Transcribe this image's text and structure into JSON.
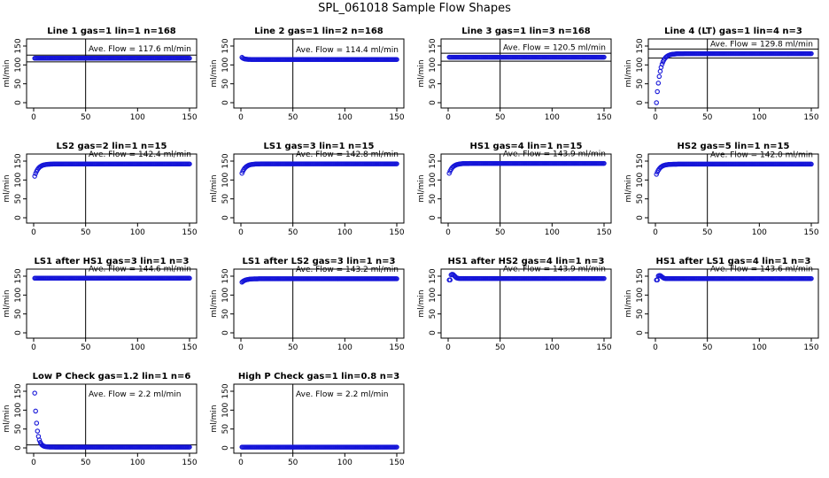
{
  "page_title": "SPL_061018  Sample Flow Shapes",
  "colors": {
    "points": "#1515d8",
    "axes": "#000000",
    "background": "#ffffff"
  },
  "chart_data": [
    {
      "type": "scatter",
      "title": "Line 1 gas=1 lin=1 n=168",
      "avg_text": "Ave. Flow =  117.6  ml/min",
      "avg": 117.6,
      "pattern": "flat",
      "start": 115,
      "peak": null,
      "ylabel": "ml/min",
      "xlim": [
        0,
        150
      ],
      "ylim": [
        0,
        150
      ],
      "xticks": [
        0,
        50,
        100,
        150
      ],
      "yticks": [
        0,
        50,
        100,
        150
      ],
      "vline_x": 50,
      "hlines": [
        108,
        126
      ]
    },
    {
      "type": "scatter",
      "title": "Line 2 gas=1 lin=2 n=168",
      "avg_text": "Ave. Flow =  114.4  ml/min",
      "avg": 114.4,
      "pattern": "dip",
      "start": 120,
      "peak": null,
      "ylabel": "ml/min",
      "xlim": [
        0,
        150
      ],
      "ylim": [
        0,
        150
      ],
      "xticks": [
        0,
        50,
        100,
        150
      ],
      "yticks": [
        0,
        50,
        100,
        150
      ],
      "vline_x": 50,
      "hlines": []
    },
    {
      "type": "scatter",
      "title": "Line 3 gas=1 lin=3 n=168",
      "avg_text": "Ave. Flow =  120.5  ml/min",
      "avg": 120.5,
      "pattern": "flat",
      "start": 120,
      "peak": null,
      "ylabel": "ml/min",
      "xlim": [
        0,
        150
      ],
      "ylim": [
        0,
        150
      ],
      "xticks": [
        0,
        50,
        100,
        150
      ],
      "yticks": [
        0,
        50,
        100,
        150
      ],
      "vline_x": 50,
      "hlines": [
        110,
        131
      ]
    },
    {
      "type": "scatter",
      "title": "Line 4 (LT) gas=1 lin=4 n=3",
      "avg_text": "Ave. Flow =  129.8  ml/min",
      "avg": 129.8,
      "pattern": "rise",
      "start": 0,
      "peak": null,
      "ylabel": "ml/min",
      "xlim": [
        0,
        150
      ],
      "ylim": [
        0,
        150
      ],
      "xticks": [
        0,
        50,
        100,
        150
      ],
      "yticks": [
        0,
        50,
        100,
        150
      ],
      "vline_x": 50,
      "hlines": [
        118,
        142
      ]
    },
    {
      "type": "scatter",
      "title": "LS2 gas=2 lin=1 n=15",
      "avg_text": "Ave. Flow =  142.4  ml/min",
      "avg": 142.4,
      "pattern": "rise",
      "start": 110,
      "peak": null,
      "ylabel": "ml/min",
      "xlim": [
        0,
        150
      ],
      "ylim": [
        0,
        150
      ],
      "xticks": [
        0,
        50,
        100,
        150
      ],
      "yticks": [
        0,
        50,
        100,
        150
      ],
      "vline_x": 50,
      "hlines": []
    },
    {
      "type": "scatter",
      "title": "LS1 gas=3 lin=1 n=15",
      "avg_text": "Ave. Flow =  142.8  ml/min",
      "avg": 142.8,
      "pattern": "rise",
      "start": 118,
      "peak": null,
      "ylabel": "ml/min",
      "xlim": [
        0,
        150
      ],
      "ylim": [
        0,
        150
      ],
      "xticks": [
        0,
        50,
        100,
        150
      ],
      "yticks": [
        0,
        50,
        100,
        150
      ],
      "vline_x": 50,
      "hlines": []
    },
    {
      "type": "scatter",
      "title": "HS1 gas=4 lin=1 n=15",
      "avg_text": "Ave. Flow =  143.9  ml/min",
      "avg": 143.9,
      "pattern": "rise",
      "start": 118,
      "peak": null,
      "ylabel": "ml/min",
      "xlim": [
        0,
        150
      ],
      "ylim": [
        0,
        150
      ],
      "xticks": [
        0,
        50,
        100,
        150
      ],
      "yticks": [
        0,
        50,
        100,
        150
      ],
      "vline_x": 50,
      "hlines": []
    },
    {
      "type": "scatter",
      "title": "HS2 gas=5 lin=1 n=15",
      "avg_text": "Ave. Flow =  142.0  ml/min",
      "avg": 142.0,
      "pattern": "rise",
      "start": 115,
      "peak": null,
      "ylabel": "ml/min",
      "xlim": [
        0,
        150
      ],
      "ylim": [
        0,
        150
      ],
      "xticks": [
        0,
        50,
        100,
        150
      ],
      "yticks": [
        0,
        50,
        100,
        150
      ],
      "vline_x": 50,
      "hlines": []
    },
    {
      "type": "scatter",
      "title": "LS1 after HS1 gas=3 lin=1 n=3",
      "avg_text": "Ave. Flow =  144.6  ml/min",
      "avg": 144.6,
      "pattern": "flat",
      "start": 140,
      "peak": null,
      "ylabel": "ml/min",
      "xlim": [
        0,
        150
      ],
      "ylim": [
        0,
        150
      ],
      "xticks": [
        0,
        50,
        100,
        150
      ],
      "yticks": [
        0,
        50,
        100,
        150
      ],
      "vline_x": 50,
      "hlines": []
    },
    {
      "type": "scatter",
      "title": "LS1 after LS2 gas=3 lin=1 n=3",
      "avg_text": "Ave. Flow =  143.2  ml/min",
      "avg": 143.2,
      "pattern": "rise",
      "start": 134,
      "peak": null,
      "ylabel": "ml/min",
      "xlim": [
        0,
        150
      ],
      "ylim": [
        0,
        150
      ],
      "xticks": [
        0,
        50,
        100,
        150
      ],
      "yticks": [
        0,
        50,
        100,
        150
      ],
      "vline_x": 50,
      "hlines": []
    },
    {
      "type": "scatter",
      "title": "HS1 after HS2 gas=4 lin=1 n=3",
      "avg_text": "Ave. Flow =  143.9  ml/min",
      "avg": 143.9,
      "pattern": "spike",
      "start": 140,
      "peak": 155,
      "ylabel": "ml/min",
      "xlim": [
        0,
        150
      ],
      "ylim": [
        0,
        150
      ],
      "xticks": [
        0,
        50,
        100,
        150
      ],
      "yticks": [
        0,
        50,
        100,
        150
      ],
      "vline_x": 50,
      "hlines": []
    },
    {
      "type": "scatter",
      "title": "HS1 after LS1 gas=4 lin=1 n=3",
      "avg_text": "Ave. Flow =  143.6  ml/min",
      "avg": 143.6,
      "pattern": "spike",
      "start": 140,
      "peak": 152,
      "ylabel": "ml/min",
      "xlim": [
        0,
        150
      ],
      "ylim": [
        0,
        150
      ],
      "xticks": [
        0,
        50,
        100,
        150
      ],
      "yticks": [
        0,
        50,
        100,
        150
      ],
      "vline_x": 50,
      "hlines": []
    },
    {
      "type": "scatter",
      "title": "Low P Check gas=1.2 lin=1 n=6",
      "avg_text": "Ave. Flow =  2.2  ml/min",
      "avg": 2.2,
      "pattern": "decay",
      "start": 145,
      "peak": null,
      "ylabel": "ml/min",
      "xlim": [
        0,
        150
      ],
      "ylim": [
        0,
        150
      ],
      "xticks": [
        0,
        50,
        100,
        150
      ],
      "yticks": [
        0,
        50,
        100,
        150
      ],
      "vline_x": 50,
      "hlines": [
        8
      ]
    },
    {
      "type": "scatter",
      "title": "High P Check gas=1 lin=0.8 n=3",
      "avg_text": "Ave. Flow =  2.2  ml/min",
      "avg": 2.2,
      "pattern": "flat",
      "start": 2.2,
      "peak": null,
      "ylabel": "ml/min",
      "xlim": [
        0,
        150
      ],
      "ylim": [
        0,
        150
      ],
      "xticks": [
        0,
        50,
        100,
        150
      ],
      "yticks": [
        0,
        50,
        100,
        150
      ],
      "vline_x": 50,
      "hlines": []
    }
  ]
}
